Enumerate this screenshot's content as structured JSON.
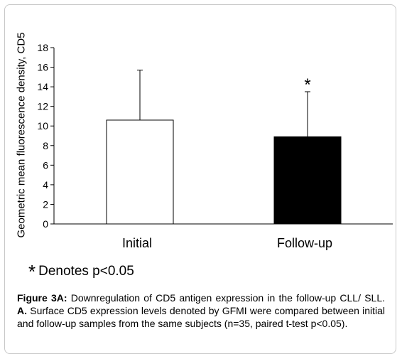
{
  "chart_data": {
    "type": "bar",
    "categories": [
      "Initial",
      "Follow-up"
    ],
    "values": [
      10.6,
      8.9
    ],
    "error_upper": [
      15.7,
      13.5
    ],
    "bar_colors": [
      "#ffffff",
      "#000000"
    ],
    "significance_marker": [
      "",
      "*"
    ],
    "ylabel": "Geometric mean fluorescence density, CD5",
    "xlabel": "",
    "ylim": [
      0,
      18
    ],
    "yticks": [
      "0",
      "2",
      "4",
      "6",
      "8",
      "10",
      "12",
      "14",
      "16",
      "18"
    ]
  },
  "footnote": {
    "star": "*",
    "text": "Denotes p<0.05"
  },
  "caption": {
    "figure_label": "Figure 3A:",
    "title_text": "Downregulation of CD5 antigen expression in the follow-up CLL/ SLL.",
    "panel_label": "A.",
    "body_text": "Surface CD5 expression levels denoted by GFMI were compared between initial and follow-up samples from the same subjects (n=35, paired t-test p<0.05)."
  }
}
